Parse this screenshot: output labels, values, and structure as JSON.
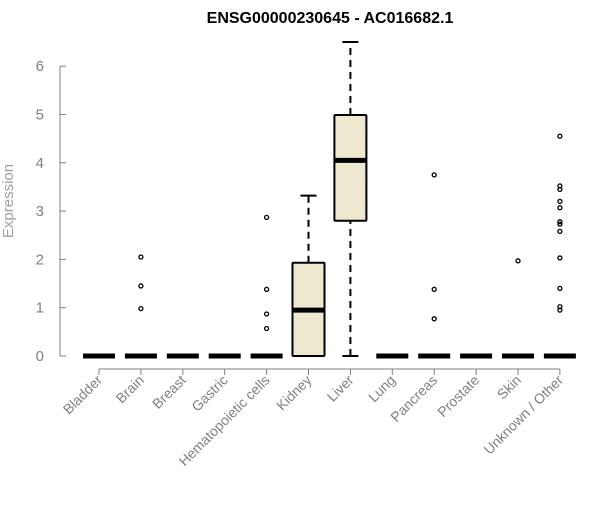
{
  "chart_data": {
    "type": "box",
    "title": "ENSG00000230645 - AC016682.1",
    "xlabel": "",
    "ylabel": "Expression",
    "ylim": [
      0,
      6.5
    ],
    "yticks": [
      0,
      1,
      2,
      3,
      4,
      5,
      6
    ],
    "grid": false,
    "colors": {
      "box_fill": "#efe8d0",
      "axis": "#808080",
      "stroke": "#000000"
    },
    "categories": [
      "Bladder",
      "Brain",
      "Breast",
      "Gastric",
      "Hematopoietic cells",
      "Kidney",
      "Liver",
      "Lung",
      "Pancreas",
      "Prostate",
      "Skin",
      "Unknown / Other"
    ],
    "boxes": [
      {
        "category": "Bladder",
        "min": 0,
        "q1": 0,
        "median": 0,
        "q3": 0,
        "max": 0,
        "outliers": []
      },
      {
        "category": "Brain",
        "min": 0,
        "q1": 0,
        "median": 0,
        "q3": 0,
        "max": 0,
        "outliers": [
          0.98,
          1.45,
          2.05
        ]
      },
      {
        "category": "Breast",
        "min": 0,
        "q1": 0,
        "median": 0,
        "q3": 0,
        "max": 0,
        "outliers": []
      },
      {
        "category": "Gastric",
        "min": 0,
        "q1": 0,
        "median": 0,
        "q3": 0,
        "max": 0,
        "outliers": []
      },
      {
        "category": "Hematopoietic cells",
        "min": 0,
        "q1": 0,
        "median": 0,
        "q3": 0,
        "max": 0,
        "outliers": [
          0.57,
          0.87,
          1.38,
          2.87
        ]
      },
      {
        "category": "Kidney",
        "min": 0,
        "q1": 0,
        "median": 0.95,
        "q3": 1.93,
        "max": 3.32,
        "outliers": []
      },
      {
        "category": "Liver",
        "min": 0,
        "q1": 2.8,
        "median": 4.05,
        "q3": 4.99,
        "max": 6.5,
        "outliers": []
      },
      {
        "category": "Lung",
        "min": 0,
        "q1": 0,
        "median": 0,
        "q3": 0,
        "max": 0,
        "outliers": []
      },
      {
        "category": "Pancreas",
        "min": 0,
        "q1": 0,
        "median": 0,
        "q3": 0,
        "max": 0,
        "outliers": [
          0.77,
          1.38,
          3.75
        ]
      },
      {
        "category": "Prostate",
        "min": 0,
        "q1": 0,
        "median": 0,
        "q3": 0,
        "max": 0,
        "outliers": []
      },
      {
        "category": "Skin",
        "min": 0,
        "q1": 0,
        "median": 0,
        "q3": 0,
        "max": 0,
        "outliers": [
          1.97
        ]
      },
      {
        "category": "Unknown / Other",
        "min": 0,
        "q1": 0,
        "median": 0,
        "q3": 0,
        "max": 0,
        "outliers": [
          0.95,
          1.02,
          1.4,
          2.03,
          2.58,
          2.73,
          2.78,
          3.07,
          3.2,
          3.45,
          3.52,
          4.55
        ]
      }
    ]
  }
}
